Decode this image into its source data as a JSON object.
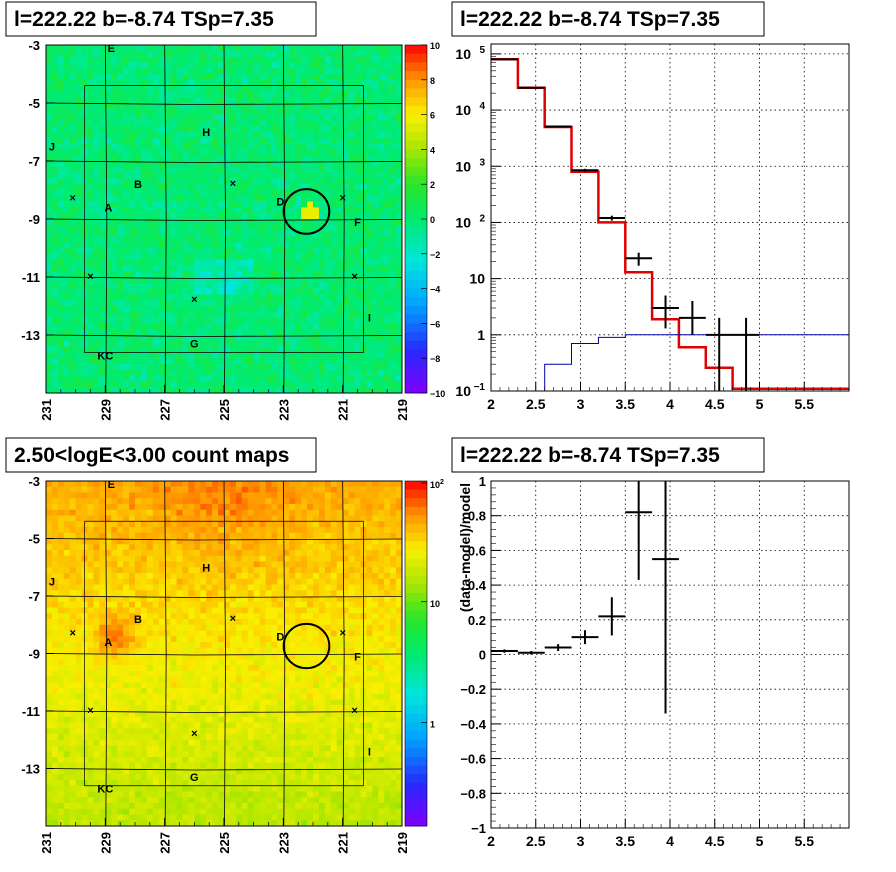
{
  "panels": {
    "tl": {
      "title": "l=222.22 b=-8.74 TSp=7.35"
    },
    "tr": {
      "title": "l=222.22 b=-8.74 TSp=7.35"
    },
    "bl": {
      "title": "2.50<logE<3.00 count maps"
    },
    "br": {
      "title": "l=222.22 b=-8.74 TSp=7.35"
    }
  },
  "colors": {
    "model_line": "#e00000",
    "small_model_line": "#0000aa",
    "data_points": "#000000"
  },
  "chart_data": [
    {
      "id": "residual-map",
      "type": "heatmap",
      "title": "l=222.22 b=-8.74 TSp=7.35",
      "x_ticks": [
        "231",
        "229",
        "227",
        "225",
        "223",
        "221",
        "219"
      ],
      "y_ticks": [
        "-3",
        "-5",
        "-7",
        "-9",
        "-11",
        "-13"
      ],
      "xlim": [
        231,
        219
      ],
      "ylim": [
        -3,
        -15
      ],
      "colorbar_ticks": [
        "10",
        "8",
        "6",
        "4",
        "2",
        "0",
        "−2",
        "−4",
        "−6",
        "−8",
        "−10"
      ],
      "colorbar_range": [
        -10,
        10
      ],
      "source_labels": [
        {
          "text": "E",
          "l": 228.8,
          "b": -3.1
        },
        {
          "text": "H",
          "l": 225.6,
          "b": -6.0
        },
        {
          "text": "J",
          "l": 230.8,
          "b": -6.5
        },
        {
          "text": "B",
          "l": 227.9,
          "b": -7.8
        },
        {
          "text": "A",
          "l": 228.9,
          "b": -8.6
        },
        {
          "text": "D",
          "l": 223.1,
          "b": -8.4
        },
        {
          "text": "F",
          "l": 220.5,
          "b": -9.1
        },
        {
          "text": "I",
          "l": 220.1,
          "b": -12.4
        },
        {
          "text": "G",
          "l": 226.0,
          "b": -13.3
        },
        {
          "text": "KC",
          "l": 229.0,
          "b": -13.7
        }
      ],
      "markers": [
        {
          "l": 230.1,
          "b": -8.3
        },
        {
          "l": 224.7,
          "b": -7.8
        },
        {
          "l": 221.0,
          "b": -8.3
        },
        {
          "l": 229.5,
          "b": -11.0
        },
        {
          "l": 226.0,
          "b": -11.8
        },
        {
          "l": 220.6,
          "b": -11.0
        }
      ],
      "circle": {
        "l": 222.22,
        "b": -8.74,
        "r": 0.55
      }
    },
    {
      "id": "spectrum",
      "type": "line",
      "title": "l=222.22 b=-8.74 TSp=7.35",
      "xlim": [
        2,
        6
      ],
      "ylim": [
        0.1,
        150000
      ],
      "ylog": true,
      "x_ticks": [
        "2",
        "2.5",
        "3",
        "3.5",
        "4",
        "4.5",
        "5",
        "5.5"
      ],
      "y_ticks": [
        "10^5",
        "10^4",
        "10^3",
        "10^2",
        "10",
        "1",
        "10^-1"
      ],
      "grid": true,
      "series": [
        {
          "kind": "step",
          "color": "#e00000",
          "edges": [
            2.0,
            2.3,
            2.6,
            2.9,
            3.2,
            3.5,
            3.8,
            4.1,
            4.4,
            4.7,
            6.0
          ],
          "values": [
            80000,
            25000,
            5000,
            800,
            100,
            13,
            1.9,
            0.6,
            0.26,
            0.11
          ]
        },
        {
          "kind": "step",
          "color": "#0000aa",
          "edges": [
            2.6,
            2.9,
            3.2,
            3.5,
            3.8,
            4.1,
            4.4,
            4.7,
            6.0
          ],
          "values": [
            0.3,
            0.7,
            0.9,
            1.0,
            1.0,
            1.0,
            1.0,
            1.0
          ]
        },
        {
          "kind": "errorbar",
          "color": "#000000",
          "points": [
            {
              "x": 2.15,
              "y": 80000,
              "xerr": 0.15,
              "ylo": 79000,
              "yhi": 81000
            },
            {
              "x": 2.45,
              "y": 25000,
              "xerr": 0.15,
              "ylo": 24500,
              "yhi": 25500
            },
            {
              "x": 2.75,
              "y": 5100,
              "xerr": 0.15,
              "ylo": 4950,
              "yhi": 5250
            },
            {
              "x": 3.05,
              "y": 850,
              "xerr": 0.15,
              "ylo": 800,
              "yhi": 900
            },
            {
              "x": 3.35,
              "y": 120,
              "xerr": 0.15,
              "ylo": 108,
              "yhi": 132
            },
            {
              "x": 3.65,
              "y": 23,
              "xerr": 0.15,
              "ylo": 17,
              "yhi": 29
            },
            {
              "x": 3.95,
              "y": 3.0,
              "xerr": 0.15,
              "ylo": 1.3,
              "yhi": 5.0
            },
            {
              "x": 4.25,
              "y": 2.0,
              "xerr": 0.15,
              "ylo": 1.0,
              "yhi": 4.0
            },
            {
              "x": 4.55,
              "y": 1.0,
              "xerr": 0.15,
              "ylo": 0.1,
              "yhi": 2.0
            },
            {
              "x": 4.85,
              "y": 1.0,
              "xerr": 0.15,
              "ylo": 0.1,
              "yhi": 2.0
            }
          ]
        }
      ]
    },
    {
      "id": "count-map",
      "type": "heatmap",
      "title": "2.50<logE<3.00 count maps",
      "x_ticks": [
        "231",
        "229",
        "227",
        "225",
        "223",
        "221",
        "219"
      ],
      "y_ticks": [
        "-3",
        "-5",
        "-7",
        "-9",
        "-11",
        "-13"
      ],
      "xlim": [
        231,
        219
      ],
      "ylim": [
        -3,
        -15
      ],
      "colorbar_ticks": [
        "10^2",
        "10",
        "1"
      ],
      "colorbar_scale": "log",
      "source_labels": [
        {
          "text": "E",
          "l": 228.8,
          "b": -3.1
        },
        {
          "text": "H",
          "l": 225.6,
          "b": -6.0
        },
        {
          "text": "J",
          "l": 230.8,
          "b": -6.5
        },
        {
          "text": "B",
          "l": 227.9,
          "b": -7.8
        },
        {
          "text": "A",
          "l": 228.9,
          "b": -8.6
        },
        {
          "text": "D",
          "l": 223.1,
          "b": -8.4
        },
        {
          "text": "F",
          "l": 220.5,
          "b": -9.1
        },
        {
          "text": "I",
          "l": 220.1,
          "b": -12.4
        },
        {
          "text": "G",
          "l": 226.0,
          "b": -13.3
        },
        {
          "text": "KC",
          "l": 229.0,
          "b": -13.7
        }
      ],
      "markers": [
        {
          "l": 230.1,
          "b": -8.3
        },
        {
          "l": 224.7,
          "b": -7.8
        },
        {
          "l": 221.0,
          "b": -8.3
        },
        {
          "l": 229.5,
          "b": -11.0
        },
        {
          "l": 226.0,
          "b": -11.8
        },
        {
          "l": 220.6,
          "b": -11.0
        }
      ],
      "circle": {
        "l": 222.22,
        "b": -8.74,
        "r": 0.55
      }
    },
    {
      "id": "residual",
      "type": "scatter",
      "title": "l=222.22 b=-8.74 TSp=7.35",
      "xlim": [
        2,
        6
      ],
      "ylim": [
        -1,
        1
      ],
      "x_ticks": [
        "2",
        "2.5",
        "3",
        "3.5",
        "4",
        "4.5",
        "5",
        "5.5"
      ],
      "y_ticks": [
        "1",
        "0.8",
        "0.6",
        "0.4",
        "0.2",
        "0",
        "−0.2",
        "−0.4",
        "−0.6",
        "−0.8",
        "−1"
      ],
      "ylabel": "(data-model)/model",
      "grid": true,
      "points": [
        {
          "x": 2.15,
          "y": 0.02,
          "xerr": 0.15,
          "yerr": 0.01
        },
        {
          "x": 2.45,
          "y": 0.01,
          "xerr": 0.15,
          "yerr": 0.01
        },
        {
          "x": 2.75,
          "y": 0.04,
          "xerr": 0.15,
          "yerr": 0.02
        },
        {
          "x": 3.05,
          "y": 0.1,
          "xerr": 0.15,
          "yerr": 0.04
        },
        {
          "x": 3.35,
          "y": 0.22,
          "xerr": 0.15,
          "yerr": 0.11
        },
        {
          "x": 3.65,
          "y": 0.82,
          "xerr": 0.15,
          "ylo": 0.43,
          "yhi": 1.0
        },
        {
          "x": 3.95,
          "y": 0.55,
          "xerr": 0.15,
          "ylo": -0.34,
          "yhi": 1.0
        }
      ]
    }
  ]
}
